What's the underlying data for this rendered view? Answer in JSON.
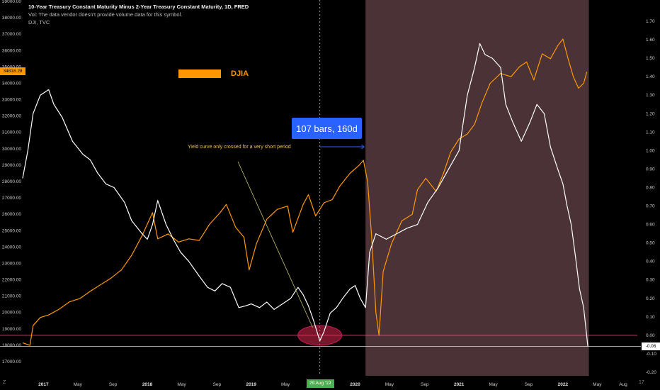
{
  "header": {
    "title": "10-Year Treasury Constant Maturity Minus 2-Year Treasury Constant Maturity, 1D, FRED",
    "line2": "Vol: The data vendor doesn't provide volume data for this symbol.",
    "line3": "DJI, TVC"
  },
  "legend": {
    "label": "DJIA",
    "color": "#ff9800"
  },
  "annotations": {
    "measure": "107 bars, 160d",
    "note": "Yield curve only crossed for a very short period"
  },
  "badges": {
    "dji_price": "34818.28",
    "spread_price": "-0.06",
    "date": "29 Aug '19"
  },
  "logo_left": "Z",
  "logo_right": "17",
  "colors": {
    "dji": "#ff9800",
    "spread": "#ffffff",
    "shade": "#4a3236",
    "measure": "#2962ff",
    "crosshair": "#f06292"
  },
  "chart_data": {
    "type": "line",
    "x_tick_labels": [
      "2017",
      "May",
      "Sep",
      "2018",
      "May",
      "Sep",
      "2019",
      "May",
      "2020",
      "May",
      "Sep",
      "2021",
      "May",
      "Sep",
      "2022",
      "May",
      "Aug"
    ],
    "x_tick_years": [
      2017,
      2017.33,
      2017.67,
      2018,
      2018.33,
      2018.67,
      2019,
      2019.33,
      2020,
      2020.33,
      2020.67,
      2021,
      2021.33,
      2021.67,
      2022,
      2022.33,
      2022.58
    ],
    "left_axis": {
      "labels": [
        "39000.00",
        "38000.00",
        "37000.00",
        "36000.00",
        "35000.00",
        "34000.00",
        "33000.00",
        "32000.00",
        "31000.00",
        "30000.00",
        "29000.00",
        "28000.00",
        "27000.00",
        "26000.00",
        "25000.00",
        "24000.00",
        "23000.00",
        "22000.00",
        "21000.00",
        "20000.00",
        "19000.00",
        "18000.00",
        "17000.00"
      ],
      "range": [
        17000,
        39000
      ]
    },
    "right_axis": {
      "labels": [
        "1.70",
        "1.60",
        "1.50",
        "1.40",
        "1.30",
        "1.20",
        "1.10",
        "1.00",
        "0.90",
        "0.80",
        "0.70",
        "0.60",
        "0.50",
        "0.40",
        "0.30",
        "0.20",
        "0.10",
        "0.00",
        "-0.10",
        "-0.20"
      ],
      "range": [
        -0.2,
        1.7
      ]
    },
    "shaded_period": [
      2020.1,
      2022.25
    ],
    "zero_line": 0.0,
    "series": [
      {
        "name": "DJIA",
        "axis": "left",
        "points": [
          [
            2016.8,
            18150
          ],
          [
            2016.87,
            18000
          ],
          [
            2016.9,
            19200
          ],
          [
            2016.97,
            19700
          ],
          [
            2017.05,
            19850
          ],
          [
            2017.15,
            20200
          ],
          [
            2017.25,
            20650
          ],
          [
            2017.35,
            20850
          ],
          [
            2017.45,
            21300
          ],
          [
            2017.55,
            21700
          ],
          [
            2017.65,
            22100
          ],
          [
            2017.75,
            22600
          ],
          [
            2017.85,
            23500
          ],
          [
            2017.95,
            24700
          ],
          [
            2018.05,
            26100
          ],
          [
            2018.1,
            24500
          ],
          [
            2018.2,
            24800
          ],
          [
            2018.3,
            24300
          ],
          [
            2018.4,
            24500
          ],
          [
            2018.5,
            24400
          ],
          [
            2018.6,
            25400
          ],
          [
            2018.7,
            26100
          ],
          [
            2018.76,
            26600
          ],
          [
            2018.85,
            25200
          ],
          [
            2018.93,
            24600
          ],
          [
            2018.98,
            22600
          ],
          [
            2019.05,
            24200
          ],
          [
            2019.15,
            25700
          ],
          [
            2019.25,
            26300
          ],
          [
            2019.35,
            26500
          ],
          [
            2019.4,
            24900
          ],
          [
            2019.5,
            26600
          ],
          [
            2019.55,
            27200
          ],
          [
            2019.62,
            25900
          ],
          [
            2019.7,
            26700
          ],
          [
            2019.78,
            26900
          ],
          [
            2019.85,
            27700
          ],
          [
            2019.95,
            28500
          ],
          [
            2020.04,
            29000
          ],
          [
            2020.08,
            29300
          ],
          [
            2020.12,
            28000
          ],
          [
            2020.16,
            24500
          ],
          [
            2020.2,
            20000
          ],
          [
            2020.23,
            18600
          ],
          [
            2020.27,
            22500
          ],
          [
            2020.35,
            24200
          ],
          [
            2020.45,
            25600
          ],
          [
            2020.55,
            26000
          ],
          [
            2020.6,
            27500
          ],
          [
            2020.68,
            28200
          ],
          [
            2020.78,
            27400
          ],
          [
            2020.85,
            28500
          ],
          [
            2020.92,
            29800
          ],
          [
            2021.0,
            30600
          ],
          [
            2021.08,
            30900
          ],
          [
            2021.15,
            31500
          ],
          [
            2021.22,
            32800
          ],
          [
            2021.3,
            34000
          ],
          [
            2021.4,
            34600
          ],
          [
            2021.5,
            34400
          ],
          [
            2021.58,
            35000
          ],
          [
            2021.65,
            35300
          ],
          [
            2021.72,
            34200
          ],
          [
            2021.8,
            35800
          ],
          [
            2021.88,
            35500
          ],
          [
            2021.95,
            36300
          ],
          [
            2022.0,
            36700
          ],
          [
            2022.05,
            35500
          ],
          [
            2022.1,
            34400
          ],
          [
            2022.15,
            33700
          ],
          [
            2022.2,
            34000
          ],
          [
            2022.23,
            34700
          ]
        ]
      },
      {
        "name": "10Y-2Y spread",
        "axis": "right",
        "points": [
          [
            2016.8,
            0.85
          ],
          [
            2016.85,
            1.0
          ],
          [
            2016.9,
            1.2
          ],
          [
            2016.97,
            1.3
          ],
          [
            2017.05,
            1.33
          ],
          [
            2017.1,
            1.25
          ],
          [
            2017.18,
            1.18
          ],
          [
            2017.28,
            1.05
          ],
          [
            2017.38,
            0.98
          ],
          [
            2017.45,
            0.95
          ],
          [
            2017.52,
            0.88
          ],
          [
            2017.6,
            0.82
          ],
          [
            2017.68,
            0.8
          ],
          [
            2017.78,
            0.72
          ],
          [
            2017.85,
            0.62
          ],
          [
            2017.95,
            0.55
          ],
          [
            2018.0,
            0.52
          ],
          [
            2018.05,
            0.6
          ],
          [
            2018.1,
            0.73
          ],
          [
            2018.18,
            0.6
          ],
          [
            2018.25,
            0.52
          ],
          [
            2018.32,
            0.45
          ],
          [
            2018.4,
            0.4
          ],
          [
            2018.5,
            0.32
          ],
          [
            2018.58,
            0.26
          ],
          [
            2018.65,
            0.24
          ],
          [
            2018.72,
            0.28
          ],
          [
            2018.8,
            0.26
          ],
          [
            2018.88,
            0.15
          ],
          [
            2018.95,
            0.16
          ],
          [
            2019.0,
            0.17
          ],
          [
            2019.08,
            0.15
          ],
          [
            2019.15,
            0.18
          ],
          [
            2019.22,
            0.14
          ],
          [
            2019.3,
            0.17
          ],
          [
            2019.38,
            0.2
          ],
          [
            2019.45,
            0.26
          ],
          [
            2019.5,
            0.22
          ],
          [
            2019.55,
            0.16
          ],
          [
            2019.6,
            0.08
          ],
          [
            2019.66,
            -0.03
          ],
          [
            2019.7,
            0.02
          ],
          [
            2019.76,
            0.12
          ],
          [
            2019.82,
            0.15
          ],
          [
            2019.88,
            0.2
          ],
          [
            2019.95,
            0.25
          ],
          [
            2020.0,
            0.27
          ],
          [
            2020.05,
            0.2
          ],
          [
            2020.1,
            0.15
          ],
          [
            2020.14,
            0.45
          ],
          [
            2020.2,
            0.55
          ],
          [
            2020.3,
            0.52
          ],
          [
            2020.4,
            0.55
          ],
          [
            2020.5,
            0.58
          ],
          [
            2020.6,
            0.6
          ],
          [
            2020.7,
            0.72
          ],
          [
            2020.8,
            0.8
          ],
          [
            2020.9,
            0.9
          ],
          [
            2021.0,
            1.0
          ],
          [
            2021.08,
            1.3
          ],
          [
            2021.15,
            1.45
          ],
          [
            2021.2,
            1.58
          ],
          [
            2021.25,
            1.52
          ],
          [
            2021.32,
            1.5
          ],
          [
            2021.4,
            1.45
          ],
          [
            2021.45,
            1.25
          ],
          [
            2021.52,
            1.15
          ],
          [
            2021.6,
            1.05
          ],
          [
            2021.68,
            1.15
          ],
          [
            2021.75,
            1.25
          ],
          [
            2021.82,
            1.2
          ],
          [
            2021.88,
            1.02
          ],
          [
            2021.95,
            0.9
          ],
          [
            2022.0,
            0.82
          ],
          [
            2022.04,
            0.7
          ],
          [
            2022.08,
            0.6
          ],
          [
            2022.12,
            0.43
          ],
          [
            2022.16,
            0.25
          ],
          [
            2022.2,
            0.15
          ],
          [
            2022.24,
            -0.06
          ]
        ]
      }
    ]
  }
}
